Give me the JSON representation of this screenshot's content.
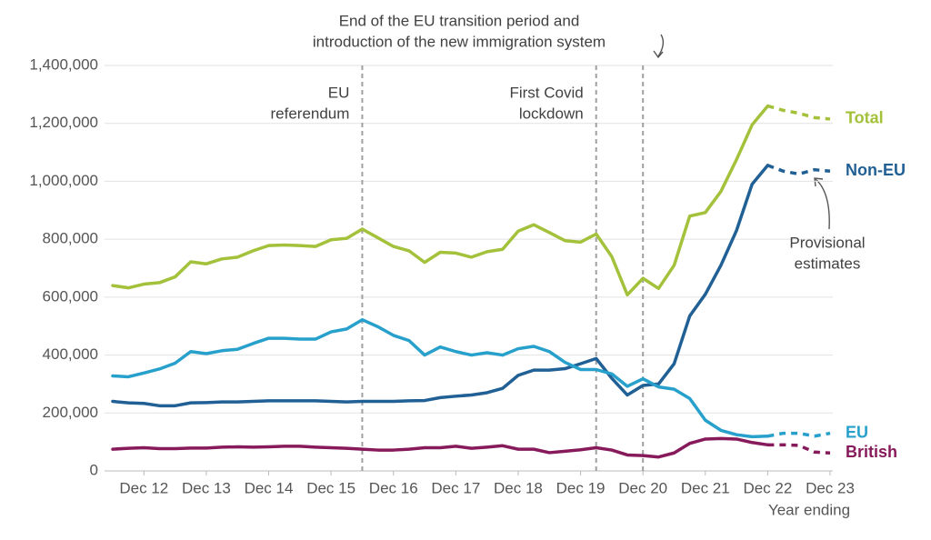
{
  "chart_data": {
    "type": "line",
    "x_label": "Year ending",
    "categories": [
      null,
      null,
      "Dec 12",
      null,
      null,
      null,
      "Dec 13",
      null,
      null,
      null,
      "Dec 14",
      null,
      null,
      null,
      "Dec 15",
      null,
      null,
      null,
      "Dec 16",
      null,
      null,
      null,
      "Dec 17",
      null,
      null,
      null,
      "Dec 18",
      null,
      null,
      null,
      "Dec 19",
      null,
      null,
      null,
      "Dec 20",
      null,
      null,
      null,
      "Dec 21",
      null,
      null,
      null,
      "Dec 22",
      null,
      null,
      null,
      "Dec 23"
    ],
    "ylim": [
      0,
      1400000
    ],
    "yticks": [
      0,
      {
        "value": 200000,
        "label": "200,000"
      },
      {
        "value": 400000,
        "label": "400,000"
      },
      {
        "value": 600000,
        "label": "600,000"
      },
      {
        "value": 800000,
        "label": "800,000"
      },
      {
        "value": 1000000,
        "label": "1,000,000"
      },
      {
        "value": 1200000,
        "label": "1,200,000"
      },
      {
        "value": 1400000,
        "label": "1,400,000"
      }
    ],
    "grid": true,
    "series": [
      {
        "name": "Total",
        "color": "#a3c13a",
        "values": [
          640000,
          632000,
          645000,
          650000,
          670000,
          722000,
          715000,
          732000,
          738000,
          760000,
          778000,
          780000,
          778000,
          775000,
          798000,
          803000,
          835000,
          805000,
          775000,
          760000,
          720000,
          755000,
          752000,
          738000,
          757000,
          765000,
          828000,
          850000,
          823000,
          795000,
          790000,
          818000,
          740000,
          608000,
          665000,
          630000,
          710000,
          880000,
          892000,
          965000,
          1075000,
          1195000,
          1260000,
          1245000,
          1235000,
          1220000,
          1215000
        ]
      },
      {
        "name": "Non-EU",
        "color": "#206095",
        "values": [
          240000,
          235000,
          233000,
          225000,
          225000,
          235000,
          236000,
          238000,
          238000,
          240000,
          242000,
          242000,
          242000,
          242000,
          240000,
          238000,
          240000,
          240000,
          240000,
          242000,
          243000,
          253000,
          258000,
          262000,
          270000,
          285000,
          330000,
          348000,
          348000,
          353000,
          370000,
          388000,
          320000,
          262000,
          295000,
          300000,
          370000,
          535000,
          610000,
          710000,
          830000,
          990000,
          1055000,
          1035000,
          1025000,
          1040000,
          1035000
        ]
      },
      {
        "name": "EU",
        "color": "#27a0cc",
        "values": [
          328000,
          325000,
          338000,
          352000,
          372000,
          412000,
          405000,
          415000,
          420000,
          440000,
          458000,
          458000,
          455000,
          455000,
          480000,
          490000,
          522000,
          498000,
          468000,
          450000,
          400000,
          428000,
          412000,
          400000,
          408000,
          400000,
          422000,
          430000,
          412000,
          375000,
          350000,
          350000,
          335000,
          292000,
          318000,
          290000,
          282000,
          250000,
          175000,
          140000,
          125000,
          118000,
          120000,
          130000,
          130000,
          120000,
          130000
        ]
      },
      {
        "name": "British",
        "color": "#871a5b",
        "values": [
          75000,
          78000,
          80000,
          77000,
          77000,
          79000,
          79000,
          82000,
          83000,
          82000,
          83000,
          85000,
          85000,
          82000,
          80000,
          78000,
          75000,
          72000,
          72000,
          75000,
          80000,
          80000,
          85000,
          78000,
          82000,
          87000,
          75000,
          75000,
          63000,
          68000,
          73000,
          80000,
          72000,
          55000,
          53000,
          48000,
          62000,
          95000,
          110000,
          112000,
          110000,
          98000,
          90000,
          90000,
          88000,
          65000,
          62000
        ]
      }
    ],
    "event_lines": [
      {
        "x": 16,
        "text": [
          "EU",
          "referendum"
        ]
      },
      {
        "x": 31,
        "text": [
          "First Covid",
          "lockdown"
        ]
      },
      {
        "x": 34,
        "text": [
          "End of the EU transition period and",
          "introduction of the new immigration system"
        ]
      }
    ],
    "provisional": {
      "from": "Dec 22",
      "text": [
        "Provisional",
        "estimates"
      ]
    }
  }
}
